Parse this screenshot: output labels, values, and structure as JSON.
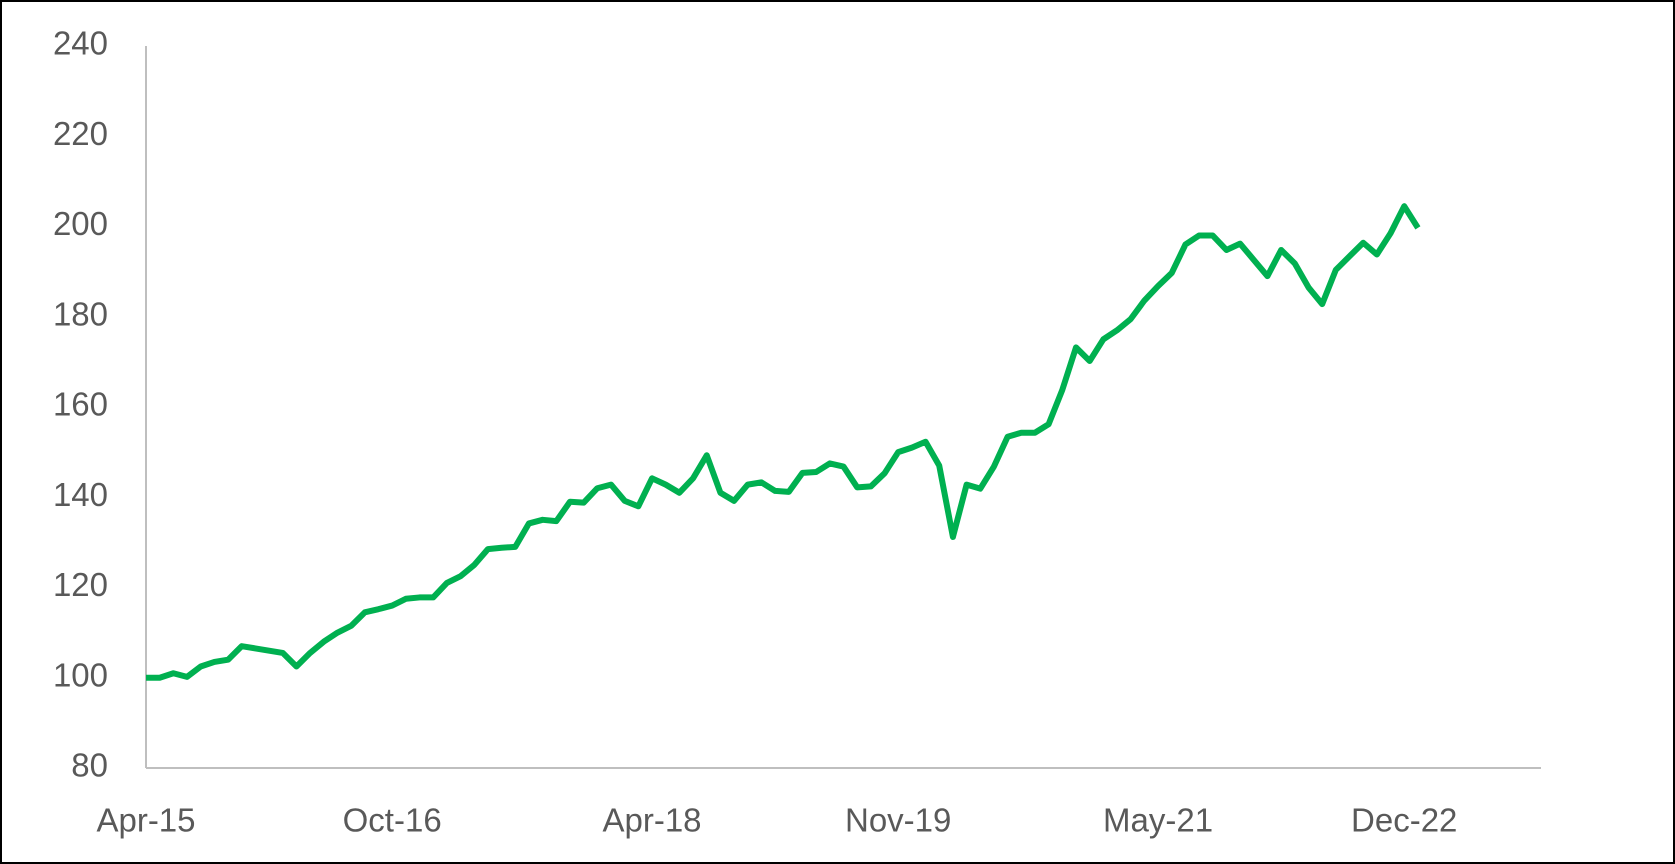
{
  "chart_data": {
    "type": "line",
    "categories": [
      "Apr-15",
      null,
      null,
      null,
      null,
      null,
      null,
      null,
      null,
      null,
      null,
      null,
      null,
      null,
      null,
      null,
      null,
      null,
      "Oct-16",
      null,
      null,
      null,
      null,
      null,
      null,
      null,
      null,
      null,
      null,
      null,
      null,
      null,
      null,
      null,
      null,
      null,
      null,
      "Apr-18",
      null,
      null,
      null,
      null,
      null,
      null,
      null,
      null,
      null,
      null,
      null,
      null,
      null,
      null,
      null,
      null,
      null,
      "Nov-19",
      null,
      null,
      null,
      null,
      null,
      null,
      null,
      null,
      null,
      null,
      null,
      null,
      null,
      null,
      null,
      null,
      null,
      null,
      "May-21",
      null,
      null,
      null,
      null,
      null,
      null,
      null,
      null,
      null,
      null,
      null,
      null,
      null,
      null,
      null,
      null,
      null,
      "Dec-22",
      null,
      null,
      null,
      null,
      null,
      null,
      null,
      null,
      null,
      null
    ],
    "series": [
      {
        "color": "#00b050",
        "values": [
          100,
          100,
          101,
          100.2,
          102.5,
          103.5,
          104,
          107,
          106.5,
          106,
          105.5,
          102.5,
          105.5,
          108,
          110,
          111.5,
          114.5,
          115.2,
          116,
          117.5,
          117.8,
          117.8,
          121,
          122.5,
          125,
          128.5,
          128.8,
          129,
          134.2,
          135,
          134.7,
          139,
          138.8,
          142,
          142.8,
          139.2,
          138,
          144.2,
          142.8,
          141,
          144.2,
          149.3,
          141,
          139.2,
          142.8,
          143.3,
          141.4,
          141.2,
          145.4,
          145.6,
          147.5,
          146.8,
          142.2,
          142.4,
          145.3,
          150,
          151,
          152.3,
          147,
          131.2,
          142.8,
          141.9,
          146.8,
          153.4,
          154.3,
          154.3,
          156.2,
          163.8,
          173.2,
          170.2,
          175,
          177,
          179.5,
          183.6,
          186.8,
          189.7,
          196,
          198,
          198,
          194.8,
          196.2,
          192.6,
          189,
          194.8,
          191.8,
          186.5,
          182.8,
          190.4,
          193.4,
          196.4,
          193.8,
          198.5,
          204.5,
          199.7,
          null,
          null,
          null,
          null,
          null,
          null,
          null,
          null,
          null
        ]
      }
    ],
    "ylim": [
      80,
      240
    ],
    "yticks": [
      80,
      100,
      120,
      140,
      160,
      180,
      200,
      220,
      240
    ],
    "grid": false
  }
}
